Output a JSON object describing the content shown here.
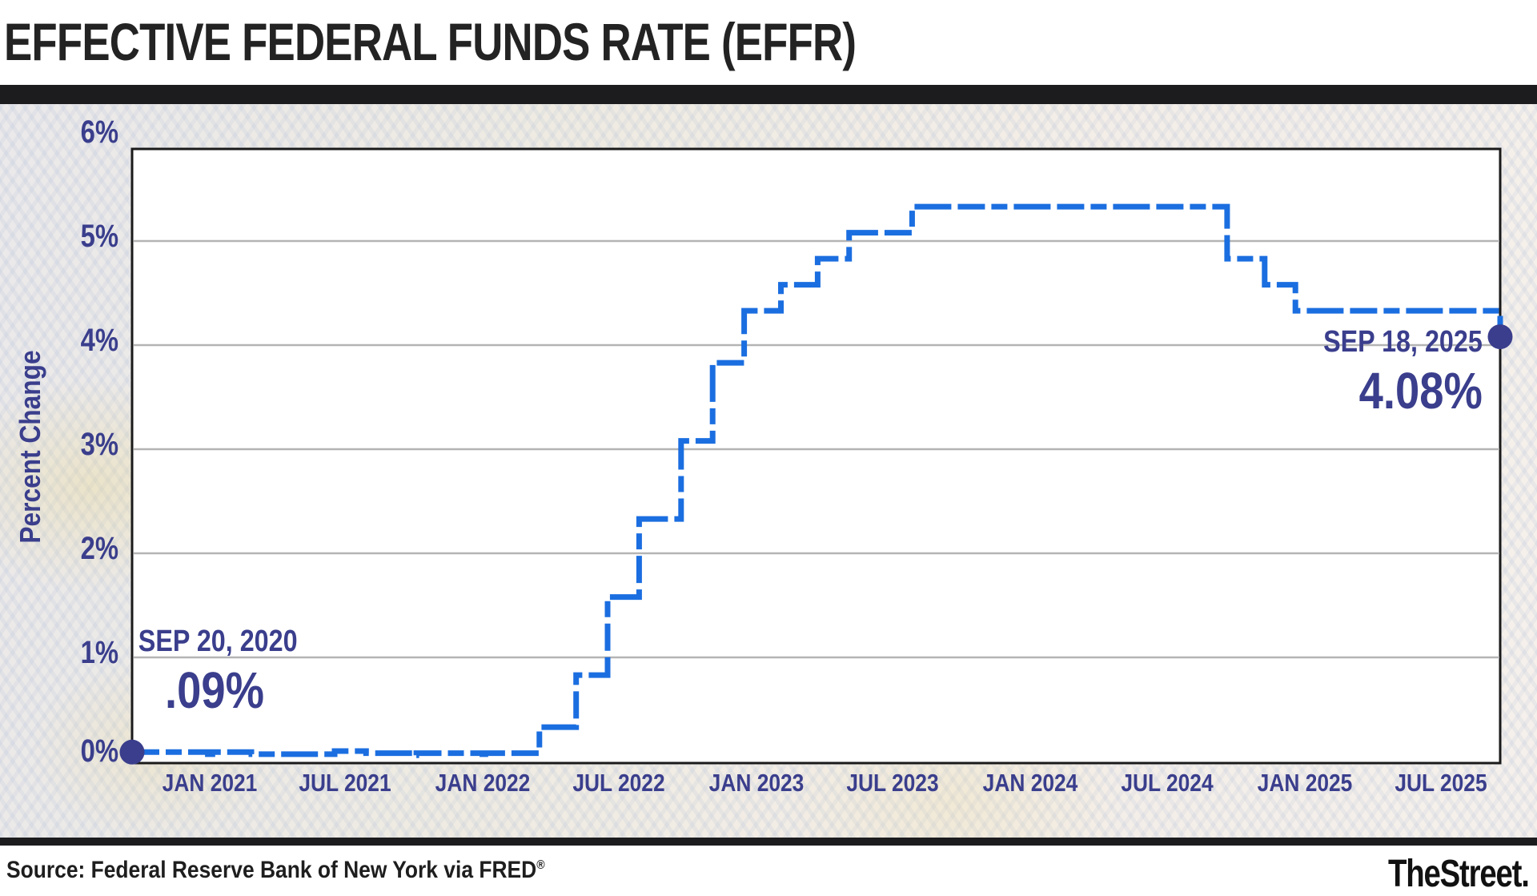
{
  "header": {
    "title": "EFFECTIVE FEDERAL FUNDS RATE (EFFR)"
  },
  "chart_data": {
    "type": "line",
    "subtype": "step",
    "title": "EFFECTIVE FEDERAL FUNDS RATE (EFFR)",
    "ylabel": "Percent Change",
    "xlabel": "",
    "ylim": [
      0,
      6
    ],
    "grid": true,
    "legend": "none",
    "line_color": "#1b6ee0",
    "accent_color": "#3a3e8c",
    "grid_color": "#b4b4b4",
    "frame_color": "#1a1a1a",
    "y_ticks": [
      {
        "label": "6%",
        "value": 6
      },
      {
        "label": "5%",
        "value": 5
      },
      {
        "label": "4%",
        "value": 4
      },
      {
        "label": "3%",
        "value": 3
      },
      {
        "label": "2%",
        "value": 2
      },
      {
        "label": "1%",
        "value": 1
      },
      {
        "label": "0%",
        "value": 0
      }
    ],
    "x_ticks": [
      {
        "label": "JAN 2021",
        "date": "2021-01-01"
      },
      {
        "label": "JUL 2021",
        "date": "2021-07-01"
      },
      {
        "label": "JAN 2022",
        "date": "2022-01-01"
      },
      {
        "label": "JUL 2022",
        "date": "2022-07-01"
      },
      {
        "label": "JAN 2023",
        "date": "2023-01-01"
      },
      {
        "label": "JUL 2023",
        "date": "2023-07-01"
      },
      {
        "label": "JAN 2024",
        "date": "2024-01-01"
      },
      {
        "label": "JUL 2024",
        "date": "2024-07-01"
      },
      {
        "label": "JAN 2025",
        "date": "2025-01-01"
      },
      {
        "label": "JUL 2025",
        "date": "2025-07-01"
      }
    ],
    "series": [
      {
        "name": "Effective Federal Funds Rate",
        "points": [
          [
            "2020-09-20",
            0.09
          ],
          [
            "2020-12-30",
            0.07
          ],
          [
            "2021-01-05",
            0.09
          ],
          [
            "2021-02-26",
            0.07
          ],
          [
            "2021-06-17",
            0.1
          ],
          [
            "2021-07-29",
            0.08
          ],
          [
            "2021-09-30",
            0.06
          ],
          [
            "2021-10-04",
            0.08
          ],
          [
            "2021-12-31",
            0.07
          ],
          [
            "2022-01-04",
            0.08
          ],
          [
            "2022-03-17",
            0.33
          ],
          [
            "2022-05-05",
            0.83
          ],
          [
            "2022-06-16",
            1.58
          ],
          [
            "2022-07-28",
            2.33
          ],
          [
            "2022-09-22",
            3.08
          ],
          [
            "2022-11-03",
            3.83
          ],
          [
            "2022-12-15",
            4.33
          ],
          [
            "2023-02-02",
            4.58
          ],
          [
            "2023-03-23",
            4.83
          ],
          [
            "2023-05-04",
            5.08
          ],
          [
            "2023-07-27",
            5.33
          ],
          [
            "2024-09-19",
            4.83
          ],
          [
            "2024-11-08",
            4.58
          ],
          [
            "2024-12-19",
            4.33
          ],
          [
            "2025-09-18",
            4.08
          ]
        ]
      }
    ],
    "annotations": [
      {
        "id": "start",
        "date_label": "SEP 20, 2020",
        "value_label": ".09%",
        "date": "2020-09-20",
        "value": 0.09
      },
      {
        "id": "end",
        "date_label": "SEP 18, 2025",
        "value_label": "4.08%",
        "date": "2025-09-18",
        "value": 4.08
      }
    ]
  },
  "footer": {
    "source_text": "Source: Federal Reserve Bank of New York via FRED",
    "source_mark": "®",
    "logo_text": "TheStreet."
  }
}
